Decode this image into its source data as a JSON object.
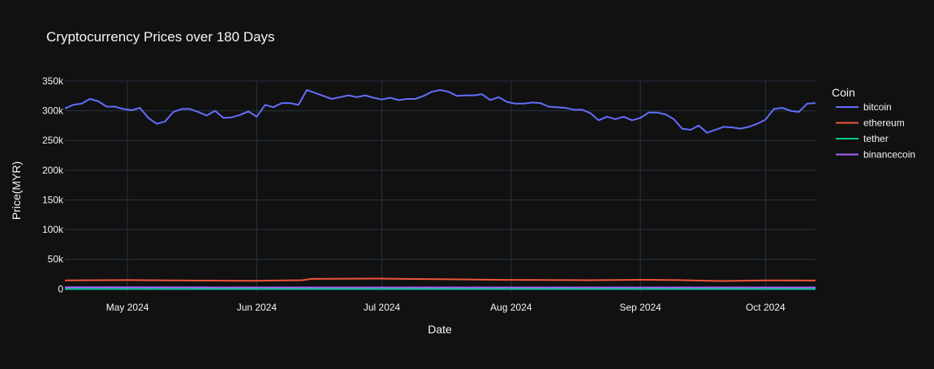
{
  "chart_data": {
    "type": "line",
    "title": "Cryptocurrency Prices over 180 Days",
    "xlabel": "Date",
    "ylabel": "Price(MYR)",
    "legend_title": "Coin",
    "legend_position": "right",
    "grid": true,
    "x_range": [
      "2024-04-16",
      "2024-10-13"
    ],
    "ylim": [
      -5000,
      350000
    ],
    "x_ticks": [
      {
        "date": "2024-05-01",
        "label": "May 2024"
      },
      {
        "date": "2024-06-01",
        "label": "Jun 2024"
      },
      {
        "date": "2024-07-01",
        "label": "Jul 2024"
      },
      {
        "date": "2024-08-01",
        "label": "Aug 2024"
      },
      {
        "date": "2024-09-01",
        "label": "Sep 2024"
      },
      {
        "date": "2024-10-01",
        "label": "Oct 2024"
      }
    ],
    "y_ticks": [
      {
        "value": 0,
        "label": "0"
      },
      {
        "value": 50000,
        "label": "50k"
      },
      {
        "value": 100000,
        "label": "100k"
      },
      {
        "value": 150000,
        "label": "150k"
      },
      {
        "value": 200000,
        "label": "200k"
      },
      {
        "value": 250000,
        "label": "250k"
      },
      {
        "value": 300000,
        "label": "300k"
      },
      {
        "value": 350000,
        "label": "350k"
      }
    ],
    "series": [
      {
        "name": "bitcoin",
        "color": "#636efa",
        "points": [
          [
            "2024-04-16",
            304000
          ],
          [
            "2024-04-18",
            310000
          ],
          [
            "2024-04-20",
            312000
          ],
          [
            "2024-04-22",
            320000
          ],
          [
            "2024-04-24",
            316000
          ],
          [
            "2024-04-26",
            307000
          ],
          [
            "2024-04-28",
            307000
          ],
          [
            "2024-04-30",
            303000
          ],
          [
            "2024-05-02",
            301000
          ],
          [
            "2024-05-04",
            305000
          ],
          [
            "2024-05-06",
            288000
          ],
          [
            "2024-05-08",
            278000
          ],
          [
            "2024-05-10",
            282000
          ],
          [
            "2024-05-12",
            298000
          ],
          [
            "2024-05-14",
            303000
          ],
          [
            "2024-05-16",
            303000
          ],
          [
            "2024-05-18",
            298000
          ],
          [
            "2024-05-20",
            292000
          ],
          [
            "2024-05-22",
            300000
          ],
          [
            "2024-05-24",
            288000
          ],
          [
            "2024-05-26",
            289000
          ],
          [
            "2024-05-28",
            293000
          ],
          [
            "2024-05-30",
            299000
          ],
          [
            "2024-06-01",
            290000
          ],
          [
            "2024-06-03",
            310000
          ],
          [
            "2024-06-05",
            306000
          ],
          [
            "2024-06-07",
            313000
          ],
          [
            "2024-06-09",
            313000
          ],
          [
            "2024-06-11",
            310000
          ],
          [
            "2024-06-13",
            335000
          ],
          [
            "2024-06-15",
            330000
          ],
          [
            "2024-06-17",
            325000
          ],
          [
            "2024-06-19",
            320000
          ],
          [
            "2024-06-21",
            323000
          ],
          [
            "2024-06-23",
            326000
          ],
          [
            "2024-06-25",
            323000
          ],
          [
            "2024-06-27",
            326000
          ],
          [
            "2024-06-29",
            322000
          ],
          [
            "2024-07-01",
            319000
          ],
          [
            "2024-07-03",
            322000
          ],
          [
            "2024-07-05",
            318000
          ],
          [
            "2024-07-07",
            320000
          ],
          [
            "2024-07-09",
            320000
          ],
          [
            "2024-07-11",
            325000
          ],
          [
            "2024-07-13",
            332000
          ],
          [
            "2024-07-15",
            335000
          ],
          [
            "2024-07-17",
            332000
          ],
          [
            "2024-07-19",
            325000
          ],
          [
            "2024-07-21",
            326000
          ],
          [
            "2024-07-23",
            326000
          ],
          [
            "2024-07-25",
            328000
          ],
          [
            "2024-07-27",
            318000
          ],
          [
            "2024-07-29",
            323000
          ],
          [
            "2024-07-31",
            315000
          ],
          [
            "2024-08-02",
            312000
          ],
          [
            "2024-08-04",
            312000
          ],
          [
            "2024-08-06",
            314000
          ],
          [
            "2024-08-08",
            313000
          ],
          [
            "2024-08-10",
            307000
          ],
          [
            "2024-08-12",
            306000
          ],
          [
            "2024-08-14",
            305000
          ],
          [
            "2024-08-16",
            302000
          ],
          [
            "2024-08-18",
            302000
          ],
          [
            "2024-08-20",
            296000
          ],
          [
            "2024-08-22",
            284000
          ],
          [
            "2024-08-24",
            290000
          ],
          [
            "2024-08-26",
            286000
          ],
          [
            "2024-08-28",
            290000
          ],
          [
            "2024-08-30",
            284000
          ],
          [
            "2024-09-01",
            288000
          ],
          [
            "2024-09-03",
            297000
          ],
          [
            "2024-09-05",
            297000
          ],
          [
            "2024-09-07",
            294000
          ],
          [
            "2024-09-09",
            286000
          ],
          [
            "2024-09-11",
            270000
          ],
          [
            "2024-09-13",
            268000
          ],
          [
            "2024-09-15",
            275000
          ],
          [
            "2024-09-17",
            263000
          ],
          [
            "2024-09-19",
            268000
          ],
          [
            "2024-09-21",
            273000
          ],
          [
            "2024-09-23",
            272000
          ],
          [
            "2024-09-25",
            270000
          ],
          [
            "2024-09-27",
            273000
          ],
          [
            "2024-09-29",
            278000
          ],
          [
            "2024-10-01",
            285000
          ],
          [
            "2024-10-03",
            303000
          ],
          [
            "2024-10-05",
            305000
          ],
          [
            "2024-10-07",
            300000
          ],
          [
            "2024-10-09",
            298000
          ],
          [
            "2024-10-11",
            312000
          ],
          [
            "2024-10-13",
            313000
          ]
        ]
      },
      {
        "name": "ethereum",
        "color": "#ef553b",
        "points": [
          [
            "2024-04-16",
            14500
          ],
          [
            "2024-05-01",
            15000
          ],
          [
            "2024-05-15",
            14300
          ],
          [
            "2024-05-31",
            13800
          ],
          [
            "2024-06-12",
            14800
          ],
          [
            "2024-06-14",
            17000
          ],
          [
            "2024-06-30",
            17500
          ],
          [
            "2024-07-15",
            16500
          ],
          [
            "2024-07-31",
            15300
          ],
          [
            "2024-08-20",
            14800
          ],
          [
            "2024-09-01",
            15500
          ],
          [
            "2024-09-10",
            15000
          ],
          [
            "2024-09-20",
            13500
          ],
          [
            "2024-10-01",
            14500
          ],
          [
            "2024-10-13",
            14200
          ]
        ]
      },
      {
        "name": "tether",
        "color": "#00cc96",
        "points": [
          [
            "2024-04-16",
            4.7
          ],
          [
            "2024-10-13",
            4.2
          ]
        ]
      },
      {
        "name": "binancecoin",
        "color": "#ab63fa",
        "points": [
          [
            "2024-04-16",
            2800
          ],
          [
            "2024-10-13",
            2600
          ]
        ]
      }
    ]
  }
}
